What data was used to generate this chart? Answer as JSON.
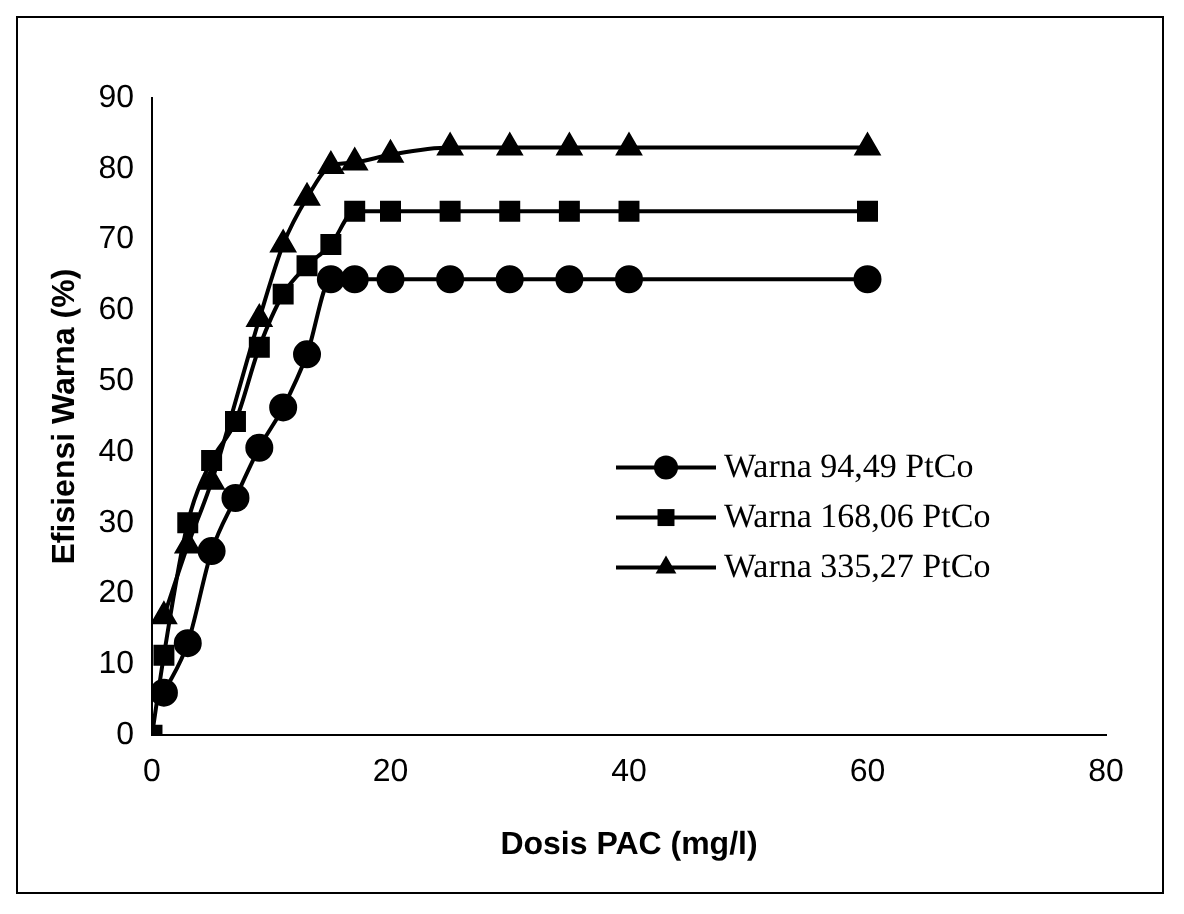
{
  "chart_data": {
    "type": "line",
    "xlabel": "Dosis PAC (mg/l)",
    "ylabel": "Efisiensi Warna (%)",
    "x": [
      0,
      1,
      3,
      5,
      7,
      9,
      11,
      13,
      15,
      17,
      20,
      25,
      30,
      35,
      40,
      60
    ],
    "series": [
      {
        "name": "Warna 94,49 PtCo",
        "color": "#000000",
        "marker": "circle",
        "values": [
          null,
          6,
          13,
          26,
          33.5,
          40.6,
          46.3,
          53.8,
          64.4,
          64.4,
          64.4,
          64.4,
          64.4,
          64.4,
          64.4,
          64.4
        ]
      },
      {
        "name": "Warna 168,06 PtCo",
        "color": "#000000",
        "marker": "square",
        "values": [
          0,
          11.3,
          30,
          38.8,
          44.3,
          54.8,
          62.3,
          66.3,
          69.3,
          74,
          74,
          74,
          74,
          74,
          74,
          74
        ]
      },
      {
        "name": "Warna 335,27 PtCo",
        "color": "#000000",
        "marker": "triangle",
        "values": [
          null,
          16.8,
          26.8,
          35.8,
          null,
          58.8,
          69.3,
          75.9,
          80.4,
          80.9,
          82,
          83,
          83,
          83,
          83,
          83
        ]
      }
    ],
    "xlim": [
      0,
      80
    ],
    "xticks": [
      0,
      20,
      40,
      60,
      80
    ],
    "ylim": [
      0,
      90
    ],
    "yticks": [
      0,
      10,
      20,
      30,
      40,
      50,
      60,
      70,
      80,
      90
    ],
    "grid": false,
    "legend": "right",
    "line_style": "solid"
  }
}
